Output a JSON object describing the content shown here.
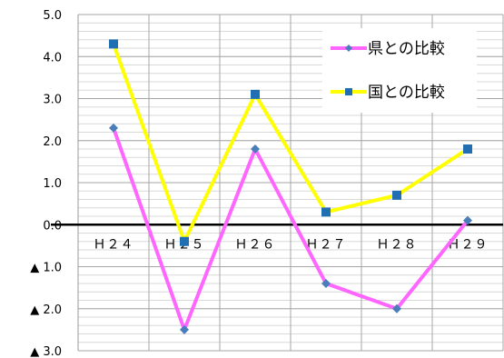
{
  "chart_data": {
    "type": "line",
    "categories": [
      "Ｈ２４",
      "Ｈ２５",
      "Ｈ２６",
      "Ｈ２７",
      "Ｈ２８",
      "Ｈ２９"
    ],
    "series": [
      {
        "name": "県との比較",
        "values": [
          2.3,
          -2.5,
          1.8,
          -1.4,
          -2.0,
          0.1
        ],
        "color": "#ff66ff",
        "marker": "diamond",
        "marker_color": "#4a7ebb"
      },
      {
        "name": "国との比較",
        "values": [
          4.3,
          -0.4,
          3.1,
          0.3,
          0.7,
          1.8
        ],
        "color": "#ffff00",
        "marker": "square",
        "marker_color": "#1f6fb2"
      }
    ],
    "ylim": [
      -3.0,
      5.0
    ],
    "y_ticks": [
      5.0,
      4.0,
      3.0,
      2.0,
      1.0,
      0.0,
      -1.0,
      -2.0,
      -3.0
    ],
    "y_tick_labels": [
      "5.0",
      "4.0",
      "3.0",
      "2.0",
      "1.0",
      "0.0",
      "▲ 1.0",
      "▲ 2.0",
      "▲ 3.0"
    ],
    "minor_grid_step": 0.2,
    "grid": true,
    "legend_position": "top-right",
    "title": "",
    "xlabel": "",
    "ylabel": ""
  }
}
